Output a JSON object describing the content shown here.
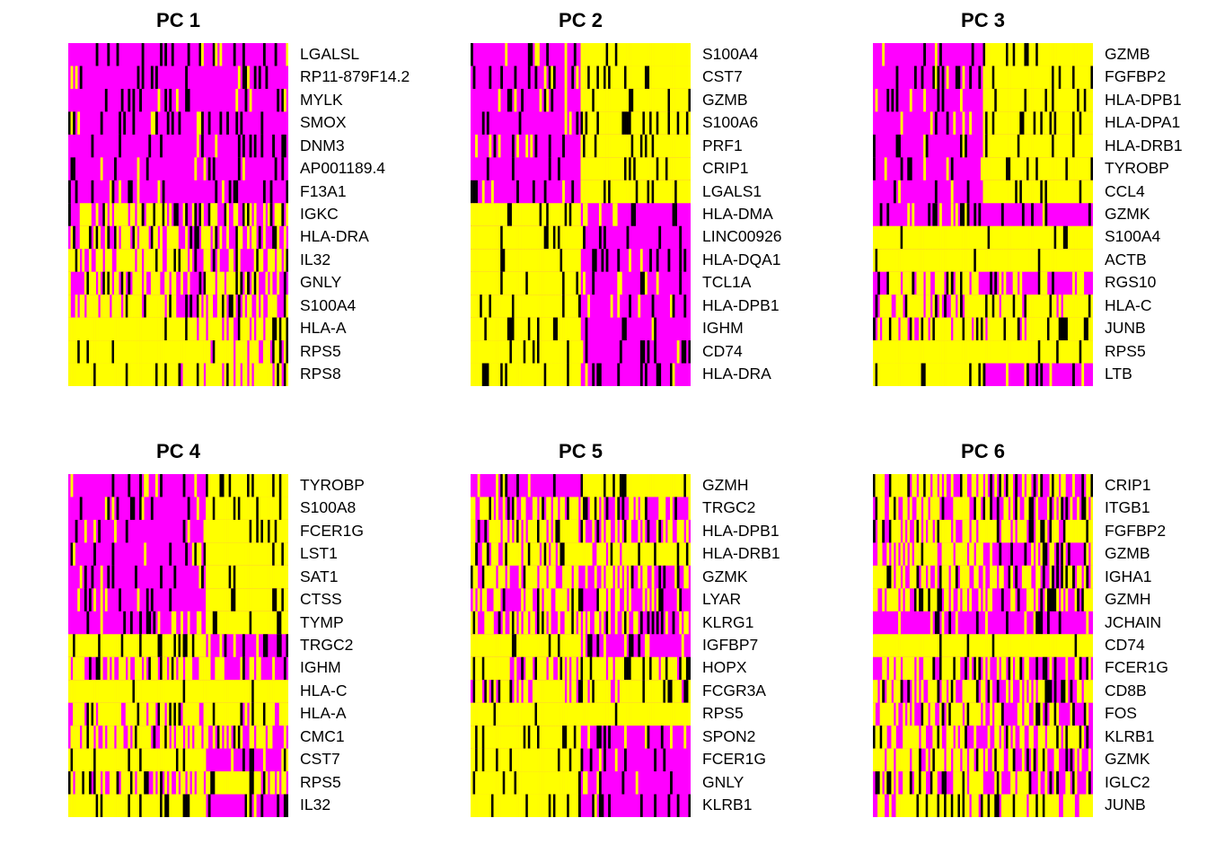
{
  "chart_data": [
    {
      "type": "heatmap",
      "title": "PC 1",
      "colors": {
        "low": "#FF00FF",
        "mid": "#000000",
        "high": "#FFFF00"
      },
      "genes": [
        "LGALSL",
        "RP11-879F14.2",
        "MYLK",
        "SMOX",
        "DNM3",
        "AP001189.4",
        "F13A1",
        "IGKC",
        "HLA-DRA",
        "IL32",
        "GNLY",
        "S100A4",
        "HLA-A",
        "RPS5",
        "RPS8"
      ],
      "pattern": [
        "allLow",
        "allLow",
        "allLow",
        "allLow",
        "allLow",
        "allLow",
        "allLow",
        "mixL",
        "mixL",
        "mixL",
        "mixL",
        "mixL",
        "highL",
        "highL",
        "highL"
      ],
      "split": 0.5
    },
    {
      "type": "heatmap",
      "title": "PC 2",
      "colors": {
        "low": "#FF00FF",
        "mid": "#000000",
        "high": "#FFFF00"
      },
      "genes": [
        "S100A4",
        "CST7",
        "GZMB",
        "S100A6",
        "PRF1",
        "CRIP1",
        "LGALS1",
        "HLA-DMA",
        "LINC00926",
        "HLA-DQA1",
        "TCL1A",
        "HLA-DPB1",
        "IGHM",
        "CD74",
        "HLA-DRA"
      ],
      "pattern": [
        "lowHigh",
        "lowHigh",
        "lowHigh",
        "lowHigh",
        "lowHigh",
        "lowHigh",
        "lowHigh",
        "highLow",
        "highLow",
        "highLow",
        "highLow",
        "highLow",
        "highLow",
        "highLow",
        "highLow"
      ],
      "split": 0.5
    },
    {
      "type": "heatmap",
      "title": "PC 3",
      "colors": {
        "low": "#FF00FF",
        "mid": "#000000",
        "high": "#FFFF00"
      },
      "genes": [
        "GZMB",
        "FGFBP2",
        "HLA-DPB1",
        "HLA-DPA1",
        "HLA-DRB1",
        "TYROBP",
        "CCL4",
        "GZMK",
        "S100A4",
        "ACTB",
        "RGS10",
        "HLA-C",
        "JUNB",
        "RPS5",
        "LTB"
      ],
      "pattern": [
        "lowHigh",
        "lowHigh",
        "lowHigh",
        "lowHigh",
        "lowHigh",
        "lowHigh",
        "lowHigh",
        "allLow",
        "allHigh",
        "allHigh",
        "mixL",
        "mixH",
        "mixH",
        "allHigh",
        "highLow"
      ],
      "split": 0.5
    },
    {
      "type": "heatmap",
      "title": "PC 4",
      "colors": {
        "low": "#FF00FF",
        "mid": "#000000",
        "high": "#FFFF00"
      },
      "genes": [
        "TYROBP",
        "S100A8",
        "FCER1G",
        "LST1",
        "SAT1",
        "CTSS",
        "TYMP",
        "TRGC2",
        "IGHM",
        "HLA-C",
        "HLA-A",
        "CMC1",
        "CST7",
        "RPS5",
        "IL32"
      ],
      "pattern": [
        "lowHigh",
        "lowHigh",
        "lowHigh",
        "lowHigh",
        "lowHigh",
        "lowHigh",
        "lowHigh",
        "highLow",
        "mixL",
        "allHigh",
        "mixH",
        "mixL",
        "highLow",
        "mixH",
        "highLow"
      ],
      "split": 0.62
    },
    {
      "type": "heatmap",
      "title": "PC 5",
      "colors": {
        "low": "#FF00FF",
        "mid": "#000000",
        "high": "#FFFF00"
      },
      "genes": [
        "GZMH",
        "TRGC2",
        "HLA-DPB1",
        "HLA-DRB1",
        "GZMK",
        "LYAR",
        "KLRG1",
        "IGFBP7",
        "HOPX",
        "FCGR3A",
        "RPS5",
        "SPON2",
        "FCER1G",
        "GNLY",
        "KLRB1"
      ],
      "pattern": [
        "lowHigh",
        "mixL",
        "mixL",
        "mixH",
        "mixL",
        "mixL",
        "mixL",
        "highLow",
        "mixH",
        "mixH",
        "allHigh",
        "highLow",
        "highLow",
        "highLow",
        "highLow"
      ],
      "split": 0.5
    },
    {
      "type": "heatmap",
      "title": "PC 6",
      "colors": {
        "low": "#FF00FF",
        "mid": "#000000",
        "high": "#FFFF00"
      },
      "genes": [
        "CRIP1",
        "ITGB1",
        "FGFBP2",
        "GZMB",
        "IGHA1",
        "GZMH",
        "JCHAIN",
        "CD74",
        "FCER1G",
        "CD8B",
        "FOS",
        "KLRB1",
        "GZMK",
        "IGLC2",
        "JUNB"
      ],
      "pattern": [
        "mixL",
        "mixL",
        "mixH",
        "mixL",
        "mixL",
        "mixL",
        "allLow",
        "allHigh",
        "mixL",
        "mixL",
        "mixL",
        "mixL",
        "mixL",
        "mixL",
        "mixH"
      ],
      "split": 0.5
    }
  ]
}
